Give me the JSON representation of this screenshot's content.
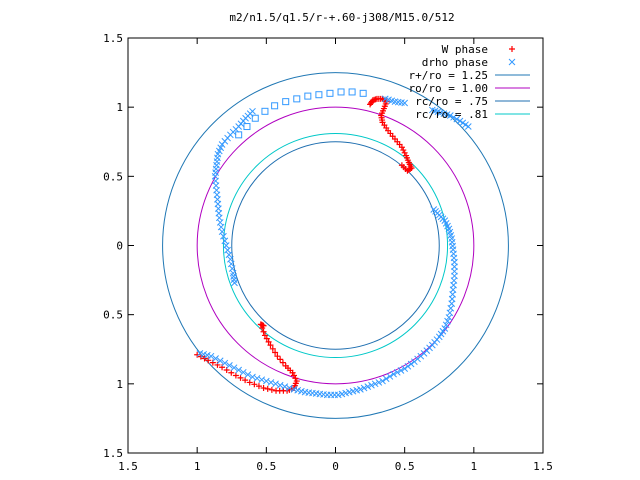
{
  "chart_data": {
    "type": "scatter",
    "title": "m2/n1.5/q1.5/r-+.60-j308/M15.0/512",
    "xlabel": "",
    "ylabel": "",
    "xlim": [
      -1.5,
      1.5
    ],
    "ylim": [
      -1.5,
      1.5
    ],
    "grid": false,
    "legend_position": "top-right",
    "x_ticks": [
      {
        "value": -1.5,
        "label": "1.5"
      },
      {
        "value": -1.0,
        "label": "1"
      },
      {
        "value": -0.5,
        "label": "0.5"
      },
      {
        "value": 0.0,
        "label": "0"
      },
      {
        "value": 0.5,
        "label": "0.5"
      },
      {
        "value": 1.0,
        "label": "1"
      },
      {
        "value": 1.5,
        "label": "1.5"
      }
    ],
    "y_ticks": [
      {
        "value": 1.5,
        "label": "1.5"
      },
      {
        "value": 1.0,
        "label": "1"
      },
      {
        "value": 0.5,
        "label": "0.5"
      },
      {
        "value": 0.0,
        "label": "0"
      },
      {
        "value": -0.5,
        "label": "0.5"
      },
      {
        "value": -1.0,
        "label": "1"
      },
      {
        "value": -1.5,
        "label": "1.5"
      }
    ],
    "series": [
      {
        "name": "W phase",
        "marker": "plus",
        "color": "#ff0000",
        "points": [
          [
            0.25,
            1.02
          ],
          [
            0.27,
            1.05
          ],
          [
            0.3,
            1.06
          ],
          [
            0.34,
            1.06
          ],
          [
            0.37,
            1.04
          ],
          [
            0.35,
            0.99
          ],
          [
            0.33,
            0.94
          ],
          [
            0.34,
            0.89
          ],
          [
            0.38,
            0.83
          ],
          [
            0.43,
            0.77
          ],
          [
            0.48,
            0.71
          ],
          [
            0.51,
            0.65
          ],
          [
            0.53,
            0.6
          ],
          [
            0.55,
            0.56
          ],
          [
            0.52,
            0.54
          ],
          [
            0.48,
            0.58
          ],
          [
            -0.52,
            -0.58
          ],
          [
            -0.54,
            -0.57
          ],
          [
            -0.51,
            -0.65
          ],
          [
            -0.47,
            -0.72
          ],
          [
            -0.42,
            -0.8
          ],
          [
            -0.36,
            -0.87
          ],
          [
            -0.31,
            -0.92
          ],
          [
            -0.28,
            -0.98
          ],
          [
            -0.3,
            -1.03
          ],
          [
            -0.35,
            -1.05
          ],
          [
            -0.43,
            -1.05
          ],
          [
            -0.52,
            -1.03
          ],
          [
            -0.62,
            -0.99
          ],
          [
            -0.72,
            -0.94
          ],
          [
            -0.82,
            -0.88
          ],
          [
            -0.92,
            -0.83
          ],
          [
            -1.0,
            -0.79
          ]
        ]
      },
      {
        "name": "drho phase",
        "marker": "cross",
        "color": "#3399ff",
        "points": [
          [
            0.7,
            0.98
          ],
          [
            0.76,
            0.96
          ],
          [
            0.83,
            0.94
          ],
          [
            0.9,
            0.9
          ],
          [
            0.96,
            0.86
          ],
          [
            0.5,
            1.03
          ],
          [
            0.43,
            1.04
          ],
          [
            0.36,
            1.06
          ],
          [
            -0.6,
            0.97
          ],
          [
            -0.65,
            0.92
          ],
          [
            -0.7,
            0.86
          ],
          [
            -0.76,
            0.8
          ],
          [
            -0.82,
            0.73
          ],
          [
            -0.85,
            0.66
          ],
          [
            -0.86,
            0.58
          ],
          [
            -0.87,
            0.5
          ],
          [
            -0.86,
            0.4
          ],
          [
            -0.85,
            0.3
          ],
          [
            -0.84,
            0.2
          ],
          [
            -0.82,
            0.1
          ],
          [
            -0.79,
            0.0
          ],
          [
            -0.76,
            -0.1
          ],
          [
            -0.74,
            -0.2
          ],
          [
            -0.73,
            -0.27
          ],
          [
            0.71,
            0.26
          ],
          [
            0.75,
            0.22
          ],
          [
            0.79,
            0.18
          ],
          [
            0.82,
            0.12
          ],
          [
            0.84,
            0.05
          ],
          [
            0.85,
            -0.03
          ],
          [
            0.86,
            -0.12
          ],
          [
            0.86,
            -0.22
          ],
          [
            0.85,
            -0.32
          ],
          [
            0.84,
            -0.42
          ],
          [
            0.82,
            -0.52
          ],
          [
            0.79,
            -0.6
          ],
          [
            0.75,
            -0.66
          ],
          [
            0.7,
            -0.72
          ],
          [
            0.64,
            -0.78
          ],
          [
            0.57,
            -0.84
          ],
          [
            0.5,
            -0.89
          ],
          [
            0.42,
            -0.93
          ],
          [
            0.34,
            -0.98
          ],
          [
            0.26,
            -1.01
          ],
          [
            0.18,
            -1.04
          ],
          [
            0.1,
            -1.06
          ],
          [
            0.02,
            -1.08
          ],
          [
            -0.06,
            -1.08
          ],
          [
            -0.14,
            -1.07
          ],
          [
            -0.22,
            -1.06
          ],
          [
            -0.3,
            -1.04
          ],
          [
            -0.4,
            -1.01
          ],
          [
            -0.5,
            -0.98
          ],
          [
            -0.6,
            -0.95
          ],
          [
            -0.7,
            -0.9
          ],
          [
            -0.8,
            -0.85
          ],
          [
            -0.9,
            -0.8
          ],
          [
            -0.98,
            -0.78
          ]
        ]
      },
      {
        "name": "",
        "marker": "square",
        "color": "#3399ff",
        "points": [
          [
            0.2,
            1.1
          ],
          [
            0.12,
            1.11
          ],
          [
            0.04,
            1.11
          ],
          [
            -0.04,
            1.1
          ],
          [
            -0.12,
            1.09
          ],
          [
            -0.2,
            1.08
          ],
          [
            -0.28,
            1.06
          ],
          [
            -0.36,
            1.04
          ],
          [
            -0.44,
            1.01
          ],
          [
            -0.51,
            0.97
          ],
          [
            -0.58,
            0.92
          ],
          [
            -0.64,
            0.86
          ],
          [
            -0.7,
            0.8
          ]
        ]
      },
      {
        "name": "r+/ro = 1.25",
        "type": "circle",
        "radius": 1.25,
        "color": "#1f77b4"
      },
      {
        "name": "ro/ro = 1.00",
        "type": "circle",
        "radius": 1.0,
        "color": "#b000c0"
      },
      {
        "name": "rc/ro = .75",
        "type": "circle",
        "radius": 0.75,
        "color": "#1f6fb0"
      },
      {
        "name": "rc/ro = .81",
        "type": "circle",
        "radius": 0.81,
        "color": "#00c8c8"
      }
    ]
  }
}
